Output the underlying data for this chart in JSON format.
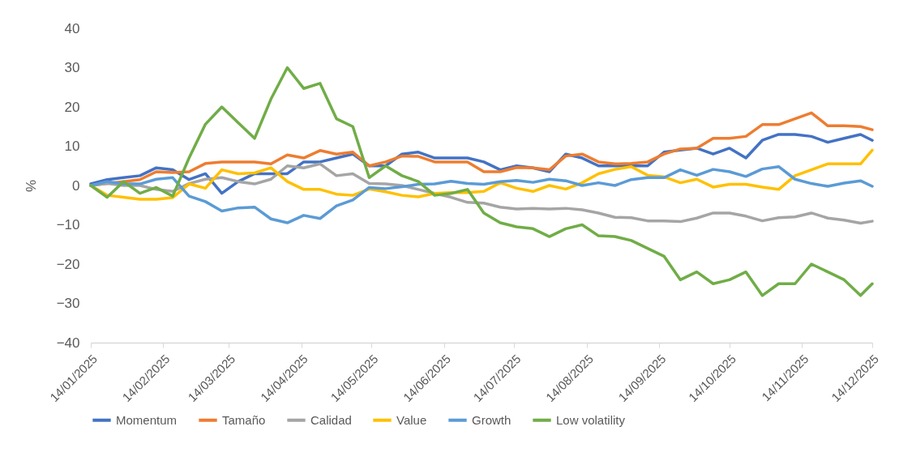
{
  "chart_data": {
    "type": "line",
    "ylabel": "%",
    "legend": "bottom",
    "line_style": "solid",
    "x": [
      "2025-01-14",
      "2025-01-21",
      "2025-01-28",
      "2025-02-04",
      "2025-02-11",
      "2025-02-18",
      "2025-02-25",
      "2025-03-04",
      "2025-03-11",
      "2025-03-18",
      "2025-03-25",
      "2025-04-01",
      "2025-04-08",
      "2025-04-15",
      "2025-04-22",
      "2025-04-29",
      "2025-05-06",
      "2025-05-13",
      "2025-05-20",
      "2025-05-27",
      "2025-06-03",
      "2025-06-10",
      "2025-06-17",
      "2025-06-24",
      "2025-07-01",
      "2025-07-08",
      "2025-07-15",
      "2025-07-22",
      "2025-07-29",
      "2025-08-05",
      "2025-08-12",
      "2025-08-19",
      "2025-08-26",
      "2025-09-02",
      "2025-09-09",
      "2025-09-16",
      "2025-09-23",
      "2025-09-30",
      "2025-10-07",
      "2025-10-14",
      "2025-10-21",
      "2025-10-28",
      "2025-11-04",
      "2025-11-11",
      "2025-11-18",
      "2025-11-25",
      "2025-12-02",
      "2025-12-09",
      "2025-12-14"
    ],
    "series": [
      {
        "name": "Momentum",
        "color": "#4472c4",
        "values": [
          0.4,
          1.5,
          2,
          2.5,
          4.5,
          4,
          1.5,
          3,
          -2,
          1,
          3,
          3,
          3,
          6,
          6,
          7,
          8,
          5,
          5,
          8,
          8.5,
          7,
          7,
          7,
          6,
          4,
          5,
          4.5,
          3.5,
          8,
          7,
          5,
          5,
          5,
          5,
          8.5,
          9,
          9.5,
          8,
          9.5,
          7,
          11.5,
          13,
          13,
          12.5,
          11,
          12,
          13,
          11.5
        ]
      },
      {
        "name": "Tamaño",
        "color": "#ed7d31",
        "values": [
          0,
          0.5,
          1,
          1.5,
          3.5,
          3.3,
          3.5,
          5.6,
          6,
          6,
          6,
          5.5,
          7.8,
          7,
          8.9,
          8,
          8.5,
          5,
          6,
          7.5,
          7.4,
          6,
          6,
          6,
          3.5,
          3.5,
          4.6,
          4.5,
          4,
          7.5,
          8,
          6,
          5.5,
          5.6,
          6,
          8,
          9.3,
          9.5,
          12,
          12,
          12.5,
          15.5,
          15.5,
          17,
          18.5,
          15.2,
          15.2,
          15,
          14.2
        ]
      },
      {
        "name": "Calidad",
        "color": "#a5a5a5",
        "values": [
          0,
          0.5,
          0,
          0,
          -1,
          -1.5,
          0.5,
          1.6,
          2,
          1,
          0.4,
          1.6,
          5,
          4.5,
          5.5,
          2.5,
          3,
          0.5,
          0.4,
          0,
          -1,
          -2,
          -3,
          -4.3,
          -4.5,
          -5.5,
          -6,
          -5.8,
          -6,
          -5.8,
          -6.2,
          -7,
          -8.1,
          -8.2,
          -9,
          -9,
          -9.2,
          -8.3,
          -7,
          -7,
          -7.8,
          -9,
          -8.2,
          -8,
          -7,
          -8.3,
          -8.8,
          -9.6,
          -9.1
        ]
      },
      {
        "name": "Value",
        "color": "#ffc000",
        "values": [
          0,
          -2.5,
          -3,
          -3.5,
          -3.5,
          -3.1,
          0.4,
          -0.7,
          4,
          3,
          3.2,
          4.5,
          1,
          -1,
          -1,
          -2.2,
          -2.5,
          -0.9,
          -1.6,
          -2.5,
          -2.9,
          -2,
          -1.8,
          -1.8,
          -1.5,
          0.7,
          -0.7,
          -1.5,
          0,
          -0.9,
          0.7,
          3,
          4.1,
          4.8,
          2.6,
          2.2,
          0.7,
          1.6,
          -0.4,
          0.3,
          0.3,
          -0.4,
          -1,
          2.5,
          4,
          5.5,
          5.5,
          5.5,
          9
        ]
      },
      {
        "name": "Growth",
        "color": "#5b9bd5",
        "values": [
          0,
          1,
          0.4,
          0.4,
          1.6,
          2,
          -2.7,
          -4.1,
          -6.5,
          -5.7,
          -5.5,
          -8.5,
          -9.5,
          -7.6,
          -8.4,
          -5.2,
          -3.7,
          -0.5,
          -0.8,
          -0.3,
          0.3,
          0.4,
          1.1,
          0.5,
          0.3,
          1,
          1.3,
          0.8,
          1.6,
          1.2,
          0,
          0.7,
          0,
          1.5,
          2,
          2,
          4,
          2.6,
          4.1,
          3.5,
          2.3,
          4.2,
          4.8,
          1.6,
          0.5,
          -0.2,
          0.6,
          1.2,
          -0.2
        ]
      },
      {
        "name": "Low volatility",
        "color": "#70ad47",
        "values": [
          0,
          -3,
          1,
          -2,
          -0.5,
          -2.7,
          7,
          15.6,
          20,
          16,
          12,
          22,
          30,
          24.7,
          26,
          17,
          15,
          2,
          5,
          2.5,
          1,
          -2.5,
          -2,
          -1,
          -7,
          -9.5,
          -10.5,
          -11,
          -13,
          -11,
          -10,
          -12.8,
          -13,
          -14,
          -16,
          -18,
          -24,
          -22,
          -25,
          -24,
          -22,
          -28,
          -25,
          -25,
          -20,
          -22,
          -24,
          -28,
          -25
        ]
      }
    ],
    "xlim": [
      "2025-01-14",
      "2025-12-14"
    ],
    "xticks": [
      {
        "value": "2025-01-14",
        "label": "14/01/2025"
      },
      {
        "value": "2025-02-14",
        "label": "14/02/2025"
      },
      {
        "value": "2025-03-14",
        "label": "14/03/2025"
      },
      {
        "value": "2025-04-14",
        "label": "14/04/2025"
      },
      {
        "value": "2025-05-14",
        "label": "14/05/2025"
      },
      {
        "value": "2025-06-14",
        "label": "14/06/2025"
      },
      {
        "value": "2025-07-14",
        "label": "14/07/2025"
      },
      {
        "value": "2025-08-14",
        "label": "14/08/2025"
      },
      {
        "value": "2025-09-14",
        "label": "14/09/2025"
      },
      {
        "value": "2025-10-14",
        "label": "14/10/2025"
      },
      {
        "value": "2025-11-14",
        "label": "14/11/2025"
      },
      {
        "value": "2025-12-14",
        "label": "14/12/2025"
      }
    ],
    "ylim": [
      -40,
      40
    ],
    "yticks": [
      -40,
      -30,
      -20,
      -10,
      0,
      10,
      20,
      30,
      40
    ]
  }
}
